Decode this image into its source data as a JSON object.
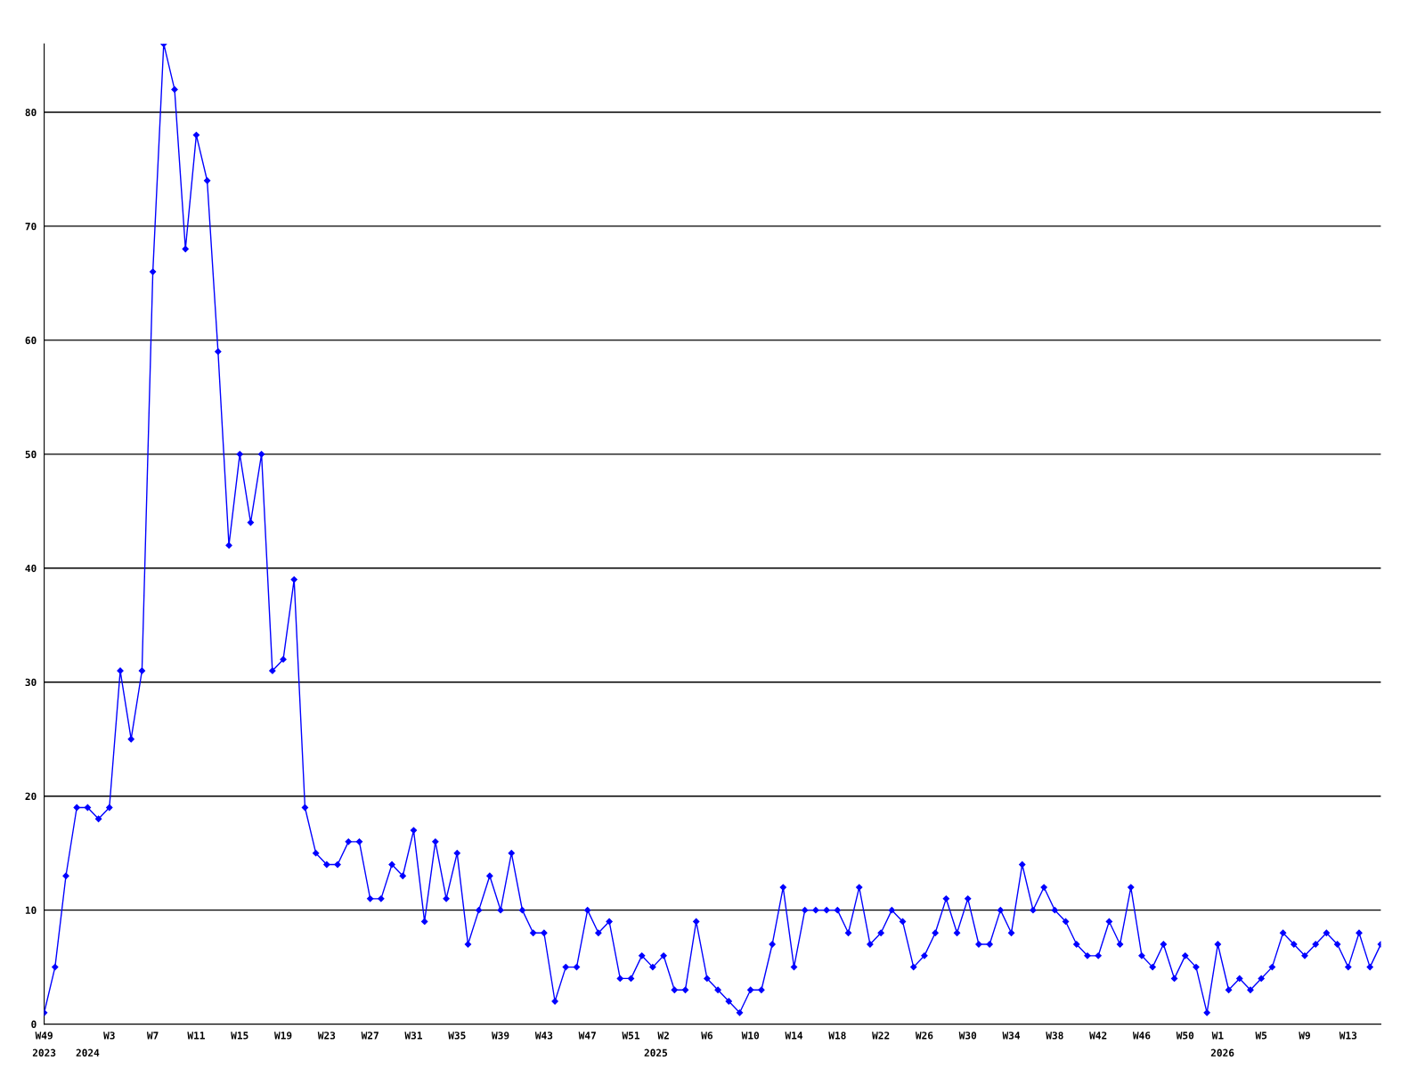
{
  "chart_data": {
    "type": "line",
    "x": [
      "2023-12-04",
      "2023-12-11",
      "2023-12-18",
      "2023-12-25",
      "2024-01-01",
      "2024-01-08",
      "2024-01-15",
      "2024-01-22",
      "2024-01-29",
      "2024-02-05",
      "2024-02-12",
      "2024-02-19",
      "2024-02-26",
      "2024-03-04",
      "2024-03-11",
      "2024-03-18",
      "2024-03-25",
      "2024-04-01",
      "2024-04-08",
      "2024-04-15",
      "2024-04-22",
      "2024-04-29",
      "2024-05-06",
      "2024-05-13",
      "2024-05-20",
      "2024-05-27",
      "2024-06-03",
      "2024-06-10",
      "2024-06-17",
      "2024-06-24",
      "2024-07-01",
      "2024-07-08",
      "2024-07-15",
      "2024-07-22",
      "2024-07-29",
      "2024-08-05",
      "2024-08-12",
      "2024-08-19",
      "2024-08-26",
      "2024-09-02",
      "2024-09-09",
      "2024-09-16",
      "2024-09-23",
      "2024-09-30",
      "2024-10-07",
      "2024-10-14",
      "2024-10-21",
      "2024-10-28",
      "2024-11-04",
      "2024-11-11",
      "2024-11-18",
      "2024-11-25",
      "2024-12-02",
      "2024-12-09",
      "2024-12-16",
      "2024-12-23",
      "2024-12-30",
      "2025-01-06",
      "2025-01-13",
      "2025-01-20",
      "2025-01-27",
      "2025-02-03",
      "2025-02-10",
      "2025-02-17",
      "2025-02-24",
      "2025-03-03",
      "2025-03-10",
      "2025-03-17",
      "2025-03-24",
      "2025-03-31",
      "2025-04-07",
      "2025-04-14",
      "2025-04-21",
      "2025-04-28",
      "2025-05-05",
      "2025-05-12",
      "2025-05-19",
      "2025-05-26",
      "2025-06-02",
      "2025-06-09",
      "2025-06-16",
      "2025-06-23",
      "2025-06-30",
      "2025-07-07",
      "2025-07-14",
      "2025-07-21",
      "2025-07-28",
      "2025-08-04",
      "2025-08-11",
      "2025-08-18",
      "2025-08-25",
      "2025-09-01",
      "2025-09-08",
      "2025-09-15",
      "2025-09-22",
      "2025-09-29",
      "2025-10-06",
      "2025-10-13",
      "2025-10-20",
      "2025-10-27",
      "2025-11-03",
      "2025-11-10",
      "2025-11-17",
      "2025-11-24",
      "2025-12-01",
      "2025-12-08",
      "2025-12-15",
      "2025-12-22",
      "2025-12-29",
      "2026-01-05",
      "2026-01-12",
      "2026-01-19",
      "2026-01-26",
      "2026-02-02",
      "2026-02-09",
      "2026-02-16",
      "2026-02-23",
      "2026-03-02",
      "2026-03-09",
      "2026-03-16",
      "2026-03-23",
      "2026-03-30",
      "2026-04-06",
      "2026-04-13"
    ],
    "series": [
      {
        "color": "#0000ff",
        "values": [
          1,
          5,
          13,
          19,
          19,
          18,
          19,
          31,
          25,
          31,
          66,
          86,
          82,
          68,
          78,
          74,
          59,
          42,
          50,
          44,
          50,
          31,
          32,
          39,
          19,
          15,
          14,
          14,
          16,
          16,
          11,
          11,
          14,
          13,
          17,
          9,
          16,
          11,
          15,
          7,
          10,
          13,
          10,
          15,
          10,
          8,
          8,
          2,
          5,
          5,
          10,
          8,
          9,
          4,
          4,
          6,
          5,
          6,
          3,
          3,
          9,
          4,
          3,
          2,
          1,
          3,
          3,
          7,
          12,
          5,
          10,
          10,
          10,
          10,
          8,
          12,
          7,
          8,
          10,
          9,
          5,
          6,
          8,
          11,
          8,
          11,
          7,
          7,
          10,
          8,
          14,
          10,
          12,
          10,
          9,
          7,
          6,
          6,
          9,
          7,
          12,
          6,
          5,
          7,
          4,
          6,
          5,
          1,
          7,
          3,
          4,
          3,
          4,
          5,
          8,
          7,
          6,
          7,
          8,
          7,
          5,
          8,
          5,
          7
        ]
      }
    ],
    "xlim": [
      "2023-12-04",
      "2026-04-13"
    ],
    "xticks": [
      {
        "value": "2023-12-04",
        "label": "W49"
      },
      {
        "value": "2024-01-15",
        "label": "W3"
      },
      {
        "value": "2024-02-12",
        "label": "W7"
      },
      {
        "value": "2024-03-11",
        "label": "W11"
      },
      {
        "value": "2024-04-08",
        "label": "W15"
      },
      {
        "value": "2024-05-06",
        "label": "W19"
      },
      {
        "value": "2024-06-03",
        "label": "W23"
      },
      {
        "value": "2024-07-01",
        "label": "W27"
      },
      {
        "value": "2024-07-29",
        "label": "W31"
      },
      {
        "value": "2024-08-26",
        "label": "W35"
      },
      {
        "value": "2024-09-23",
        "label": "W39"
      },
      {
        "value": "2024-10-21",
        "label": "W43"
      },
      {
        "value": "2024-11-18",
        "label": "W47"
      },
      {
        "value": "2024-12-16",
        "label": "W51"
      },
      {
        "value": "2025-01-06",
        "label": "W2"
      },
      {
        "value": "2025-02-03",
        "label": "W6"
      },
      {
        "value": "2025-03-03",
        "label": "W10"
      },
      {
        "value": "2025-03-31",
        "label": "W14"
      },
      {
        "value": "2025-04-28",
        "label": "W18"
      },
      {
        "value": "2025-05-26",
        "label": "W22"
      },
      {
        "value": "2025-06-23",
        "label": "W26"
      },
      {
        "value": "2025-07-21",
        "label": "W30"
      },
      {
        "value": "2025-08-18",
        "label": "W34"
      },
      {
        "value": "2025-09-15",
        "label": "W38"
      },
      {
        "value": "2025-10-13",
        "label": "W42"
      },
      {
        "value": "2025-11-10",
        "label": "W46"
      },
      {
        "value": "2025-12-08",
        "label": "W50"
      },
      {
        "value": "2025-12-29",
        "label": "W1"
      },
      {
        "value": "2026-01-26",
        "label": "W5"
      },
      {
        "value": "2026-02-23",
        "label": "W9"
      },
      {
        "value": "2026-03-23",
        "label": "W13"
      }
    ],
    "x2lim": [
      "2023-12-04",
      "2026-04-13"
    ],
    "x2ticks": [
      {
        "value": "2023-12-04",
        "label": "2023"
      },
      {
        "value": "2024-01-01",
        "label": "2024"
      },
      {
        "value": "2025-01-01",
        "label": "2025"
      },
      {
        "value": "2026-01-01",
        "label": "2026"
      }
    ],
    "ylim": [
      0,
      86
    ],
    "yticks": [
      0,
      10,
      20,
      30,
      40,
      50,
      60,
      70,
      80
    ],
    "grid": "y",
    "legend": false,
    "marker": "diamond",
    "line_style": "solid"
  }
}
